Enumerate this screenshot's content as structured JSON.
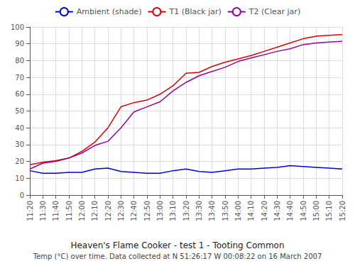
{
  "chart_data": {
    "type": "line",
    "title": "Heaven's Flame Cooker - test 1 - Tooting Common",
    "subtitle": "Temp (°C) over time. Data collected at N 51:26:17 W 00:08:22 on 16 March 2007",
    "categories": [
      "11:20",
      "11:30",
      "11:40",
      "11:50",
      "12:00",
      "12:10",
      "12:20",
      "12:30",
      "12:40",
      "12:50",
      "13:00",
      "13:10",
      "13:20",
      "13:30",
      "13:40",
      "13:50",
      "14:00",
      "14:10",
      "14:20",
      "14:30",
      "14:40",
      "14:50",
      "15:00",
      "15:10",
      "15:20"
    ],
    "series": [
      {
        "name": "Ambient (shade)",
        "color": "#0000dd",
        "values": [
          14.5,
          13.0,
          13.0,
          13.5,
          13.5,
          15.5,
          16.0,
          14.0,
          13.5,
          13.0,
          13.0,
          14.5,
          15.5,
          14.0,
          13.5,
          14.5,
          15.5,
          15.5,
          16.0,
          16.5,
          17.5,
          17.0,
          16.5,
          16.0,
          15.5
        ]
      },
      {
        "name": "T1 (Black jar)",
        "color": "#dd0000",
        "values": [
          18.0,
          19.5,
          20.5,
          22.0,
          26.0,
          31.5,
          40.0,
          52.5,
          55.0,
          56.5,
          60.0,
          65.0,
          72.5,
          73.0,
          76.5,
          79.0,
          81.0,
          83.0,
          85.5,
          88.0,
          90.5,
          93.0,
          94.5,
          95.0,
          95.5
        ]
      },
      {
        "name": "T2 (Clear jar)",
        "color": "#990099",
        "values": [
          15.5,
          19.0,
          20.0,
          22.0,
          25.0,
          29.5,
          32.0,
          40.0,
          49.5,
          52.5,
          55.5,
          62.0,
          67.0,
          71.0,
          73.5,
          76.0,
          79.5,
          81.5,
          83.5,
          85.5,
          87.0,
          89.5,
          90.5,
          91.0,
          91.5
        ]
      }
    ],
    "ylim": [
      0,
      100
    ],
    "yticks": [
      0,
      10,
      20,
      30,
      40,
      50,
      60,
      70,
      80,
      90,
      100
    ],
    "grid": true,
    "legend": "top"
  }
}
